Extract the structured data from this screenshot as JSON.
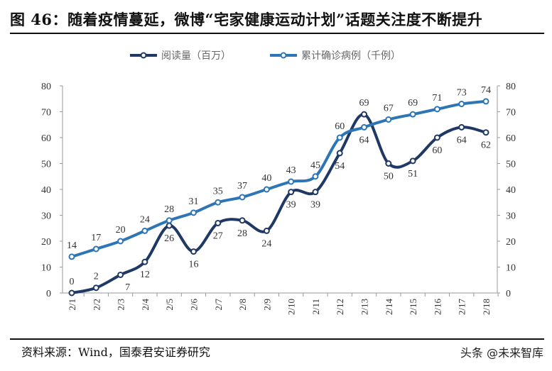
{
  "title": "图 46：随着疫情蔓延，微博“宅家健康运动计划”话题关注度不断提升",
  "source": "资料来源：Wind，国泰君安证券研究",
  "watermark": "头条 @未来智库",
  "chart_data": {
    "type": "line",
    "categories": [
      "2/1",
      "2/2",
      "2/3",
      "2/4",
      "2/5",
      "2/6",
      "2/7",
      "2/8",
      "2/9",
      "2/10",
      "2/11",
      "2/12",
      "2/13",
      "2/14",
      "2/15",
      "2/16",
      "2/17",
      "2/18"
    ],
    "series": [
      {
        "name": "阅读量（百万）",
        "axis": "left",
        "color": "#1f3864",
        "values": [
          0,
          2,
          7,
          12,
          26,
          16,
          27,
          28,
          24,
          39,
          39,
          54,
          69,
          50,
          51,
          60,
          64,
          62
        ]
      },
      {
        "name": "累计确诊病例（千例）",
        "axis": "right",
        "color": "#2e75b6",
        "values": [
          14,
          17,
          20,
          24,
          28,
          31,
          35,
          37,
          40,
          43,
          45,
          60,
          64,
          67,
          69,
          71,
          73,
          74
        ]
      }
    ],
    "ylim": [
      0,
      80
    ],
    "y2lim": [
      0,
      80
    ],
    "yticks": [
      0,
      10,
      20,
      30,
      40,
      50,
      60,
      70,
      80
    ],
    "grid": false,
    "legend": "top-center",
    "smooth": true,
    "data_labels": true
  }
}
